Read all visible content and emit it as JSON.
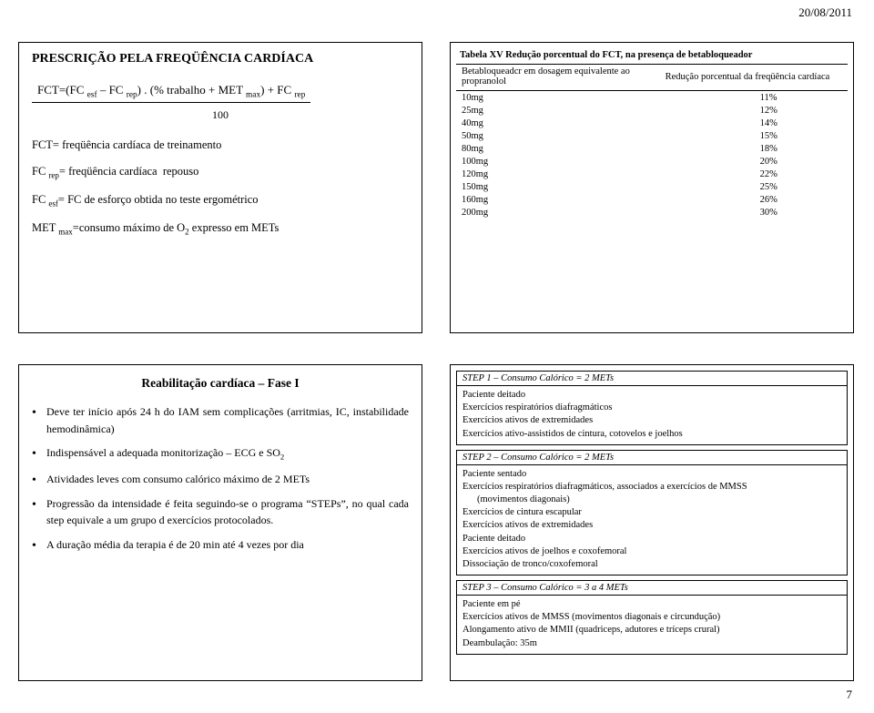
{
  "date": "20/08/2011",
  "page_number": "7",
  "top_left": {
    "title": "PRESCRIÇÃO PELA FREQÜÊNCIA CARDÍACA",
    "formula_line": "FCT=(FC esf – FC rep) . (% trabalho + MET max) + FC rep",
    "formula_denom": "100",
    "defs": [
      "FCT= freqüência cardíaca de treinamento",
      "FC rep= freqüência cardíaca  repouso",
      "FC esf= FC de esforço obtida no teste ergométrico",
      "MET max=consumo máximo de O2 expresso em METs"
    ]
  },
  "top_right": {
    "caption": "Tabela XV   Redução porcentual do FCT, na presença de betabloqueador",
    "col1": "Betabloqueadcr em dosagem equivalente ao propranolol",
    "col2": "Redução porcentual da freqüência cardíaca",
    "rows": [
      [
        "10mg",
        "11%"
      ],
      [
        "25mg",
        "12%"
      ],
      [
        "40mg",
        "14%"
      ],
      [
        "50mg",
        "15%"
      ],
      [
        "80mg",
        "18%"
      ],
      [
        "100mg",
        "20%"
      ],
      [
        "120mg",
        "22%"
      ],
      [
        "150mg",
        "25%"
      ],
      [
        "160mg",
        "26%"
      ],
      [
        "200mg",
        "30%"
      ]
    ]
  },
  "bottom_left": {
    "title": "Reabilitação cardíaca – Fase I",
    "items": [
      "Deve ter início após 24 h do IAM sem complicações (arritmias, IC, instabilidade hemodinâmica)",
      "Indispensável a adequada monitorização – ECG e SO2",
      "Atividades leves com consumo calórico máximo de 2 METs",
      "Progressão da intensidade é feita seguindo-se o programa \"STEPs\", no qual cada step equivale a um grupo d exercícios protocolados.",
      "A duração média da terapia é de 20 min até 4 vezes por dia"
    ]
  },
  "bottom_right": {
    "steps": [
      {
        "head": "STEP 1 – Consumo Calórico = 2 METs",
        "lines": [
          "Paciente deitado",
          "Exercícios respiratórios diafragmáticos",
          "Exercícios ativos de extremidades",
          "Exercícios ativo-assistidos de cintura, cotovelos e joelhos"
        ]
      },
      {
        "head": "STEP 2 – Consumo Calórico = 2 METs",
        "lines": [
          "Paciente sentado",
          "Exercícios respiratórios diafragmáticos, associados a exercícios de MMSS",
          "   (movimentos diagonais)",
          "Exercícios de cintura escapular",
          "Exercícios ativos de extremidades",
          "Paciente deitado",
          "Exercícios ativos de joelhos e coxofemoral",
          "Dissociação de tronco/coxofemoral"
        ]
      },
      {
        "head": "STEP 3 – Consumo Calórico = 3 a 4 METs",
        "lines": [
          "Paciente em pé",
          "Exercícios ativos de MMSS (movimentos diagonais e circundução)",
          "Alongamento ativo de MMII (quadriceps, adutores e tríceps crural)",
          "Deambulação: 35m"
        ]
      }
    ]
  }
}
